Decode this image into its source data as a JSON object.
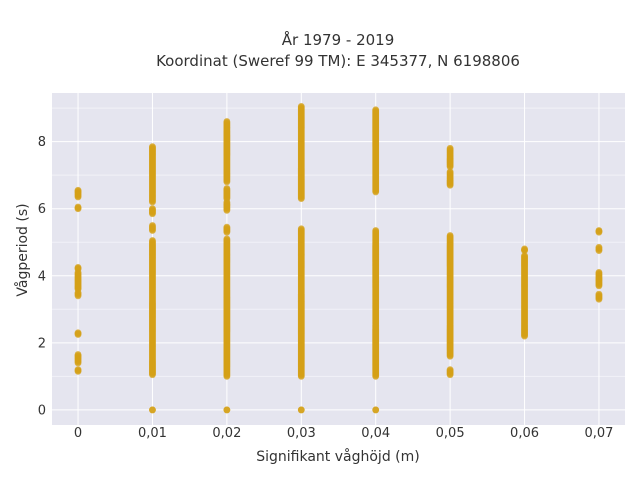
{
  "chart_data": {
    "type": "scatter",
    "title": "År 1979 - 2019",
    "subtitle": "Koordinat (Sweref 99 TM): E 345377, N 6198806",
    "xlabel": "Signifikant våghöjd (m)",
    "ylabel": "Vågperiod (s)",
    "xlim": [
      -0.0035,
      0.0735
    ],
    "ylim": [
      -0.45,
      9.45
    ],
    "x_ticks": [
      0,
      0.01,
      0.02,
      0.03,
      0.04,
      0.05,
      0.06,
      0.07
    ],
    "x_tick_labels": [
      "0",
      "0,01",
      "0,02",
      "0,03",
      "0,04",
      "0,05",
      "0,06",
      "0,07"
    ],
    "y_ticks": [
      0,
      2,
      4,
      6,
      8
    ],
    "y_tick_labels": [
      "0",
      "2",
      "4",
      "6",
      "8"
    ],
    "grid": true,
    "point_color": "#d4a017",
    "background_color": "#e5e5ef",
    "series": [
      {
        "points": [
          {
            "x": 0,
            "ranges": [
              [
                1.15,
                1.2
              ],
              [
                1.4,
                1.65
              ],
              [
                2.25,
                2.3
              ],
              [
                3.4,
                3.5
              ],
              [
                3.6,
                4.1
              ],
              [
                4.2,
                4.25
              ],
              [
                6.0,
                6.05
              ],
              [
                6.35,
                6.55
              ]
            ]
          },
          {
            "x": 0.01,
            "ranges": [
              [
                0,
                0
              ],
              [
                1.05,
                5.05
              ],
              [
                5.35,
                5.5
              ],
              [
                5.85,
                6.0
              ],
              [
                6.2,
                7.85
              ]
            ]
          },
          {
            "x": 0.02,
            "ranges": [
              [
                0,
                0
              ],
              [
                1.0,
                5.1
              ],
              [
                5.3,
                5.45
              ],
              [
                5.95,
                6.2
              ],
              [
                6.3,
                6.6
              ],
              [
                6.8,
                8.6
              ]
            ]
          },
          {
            "x": 0.03,
            "ranges": [
              [
                0,
                0
              ],
              [
                1.0,
                5.4
              ],
              [
                6.3,
                9.05
              ]
            ]
          },
          {
            "x": 0.04,
            "ranges": [
              [
                0,
                0
              ],
              [
                1.0,
                5.35
              ],
              [
                6.5,
                8.95
              ]
            ]
          },
          {
            "x": 0.05,
            "ranges": [
              [
                1.05,
                1.2
              ],
              [
                1.6,
                5.2
              ],
              [
                6.7,
                7.1
              ],
              [
                7.25,
                7.8
              ]
            ]
          },
          {
            "x": 0.06,
            "ranges": [
              [
                2.2,
                4.6
              ],
              [
                4.75,
                4.8
              ]
            ]
          },
          {
            "x": 0.07,
            "ranges": [
              [
                3.3,
                3.45
              ],
              [
                3.7,
                4.1
              ],
              [
                4.75,
                4.85
              ],
              [
                5.3,
                5.35
              ]
            ]
          }
        ]
      }
    ]
  }
}
